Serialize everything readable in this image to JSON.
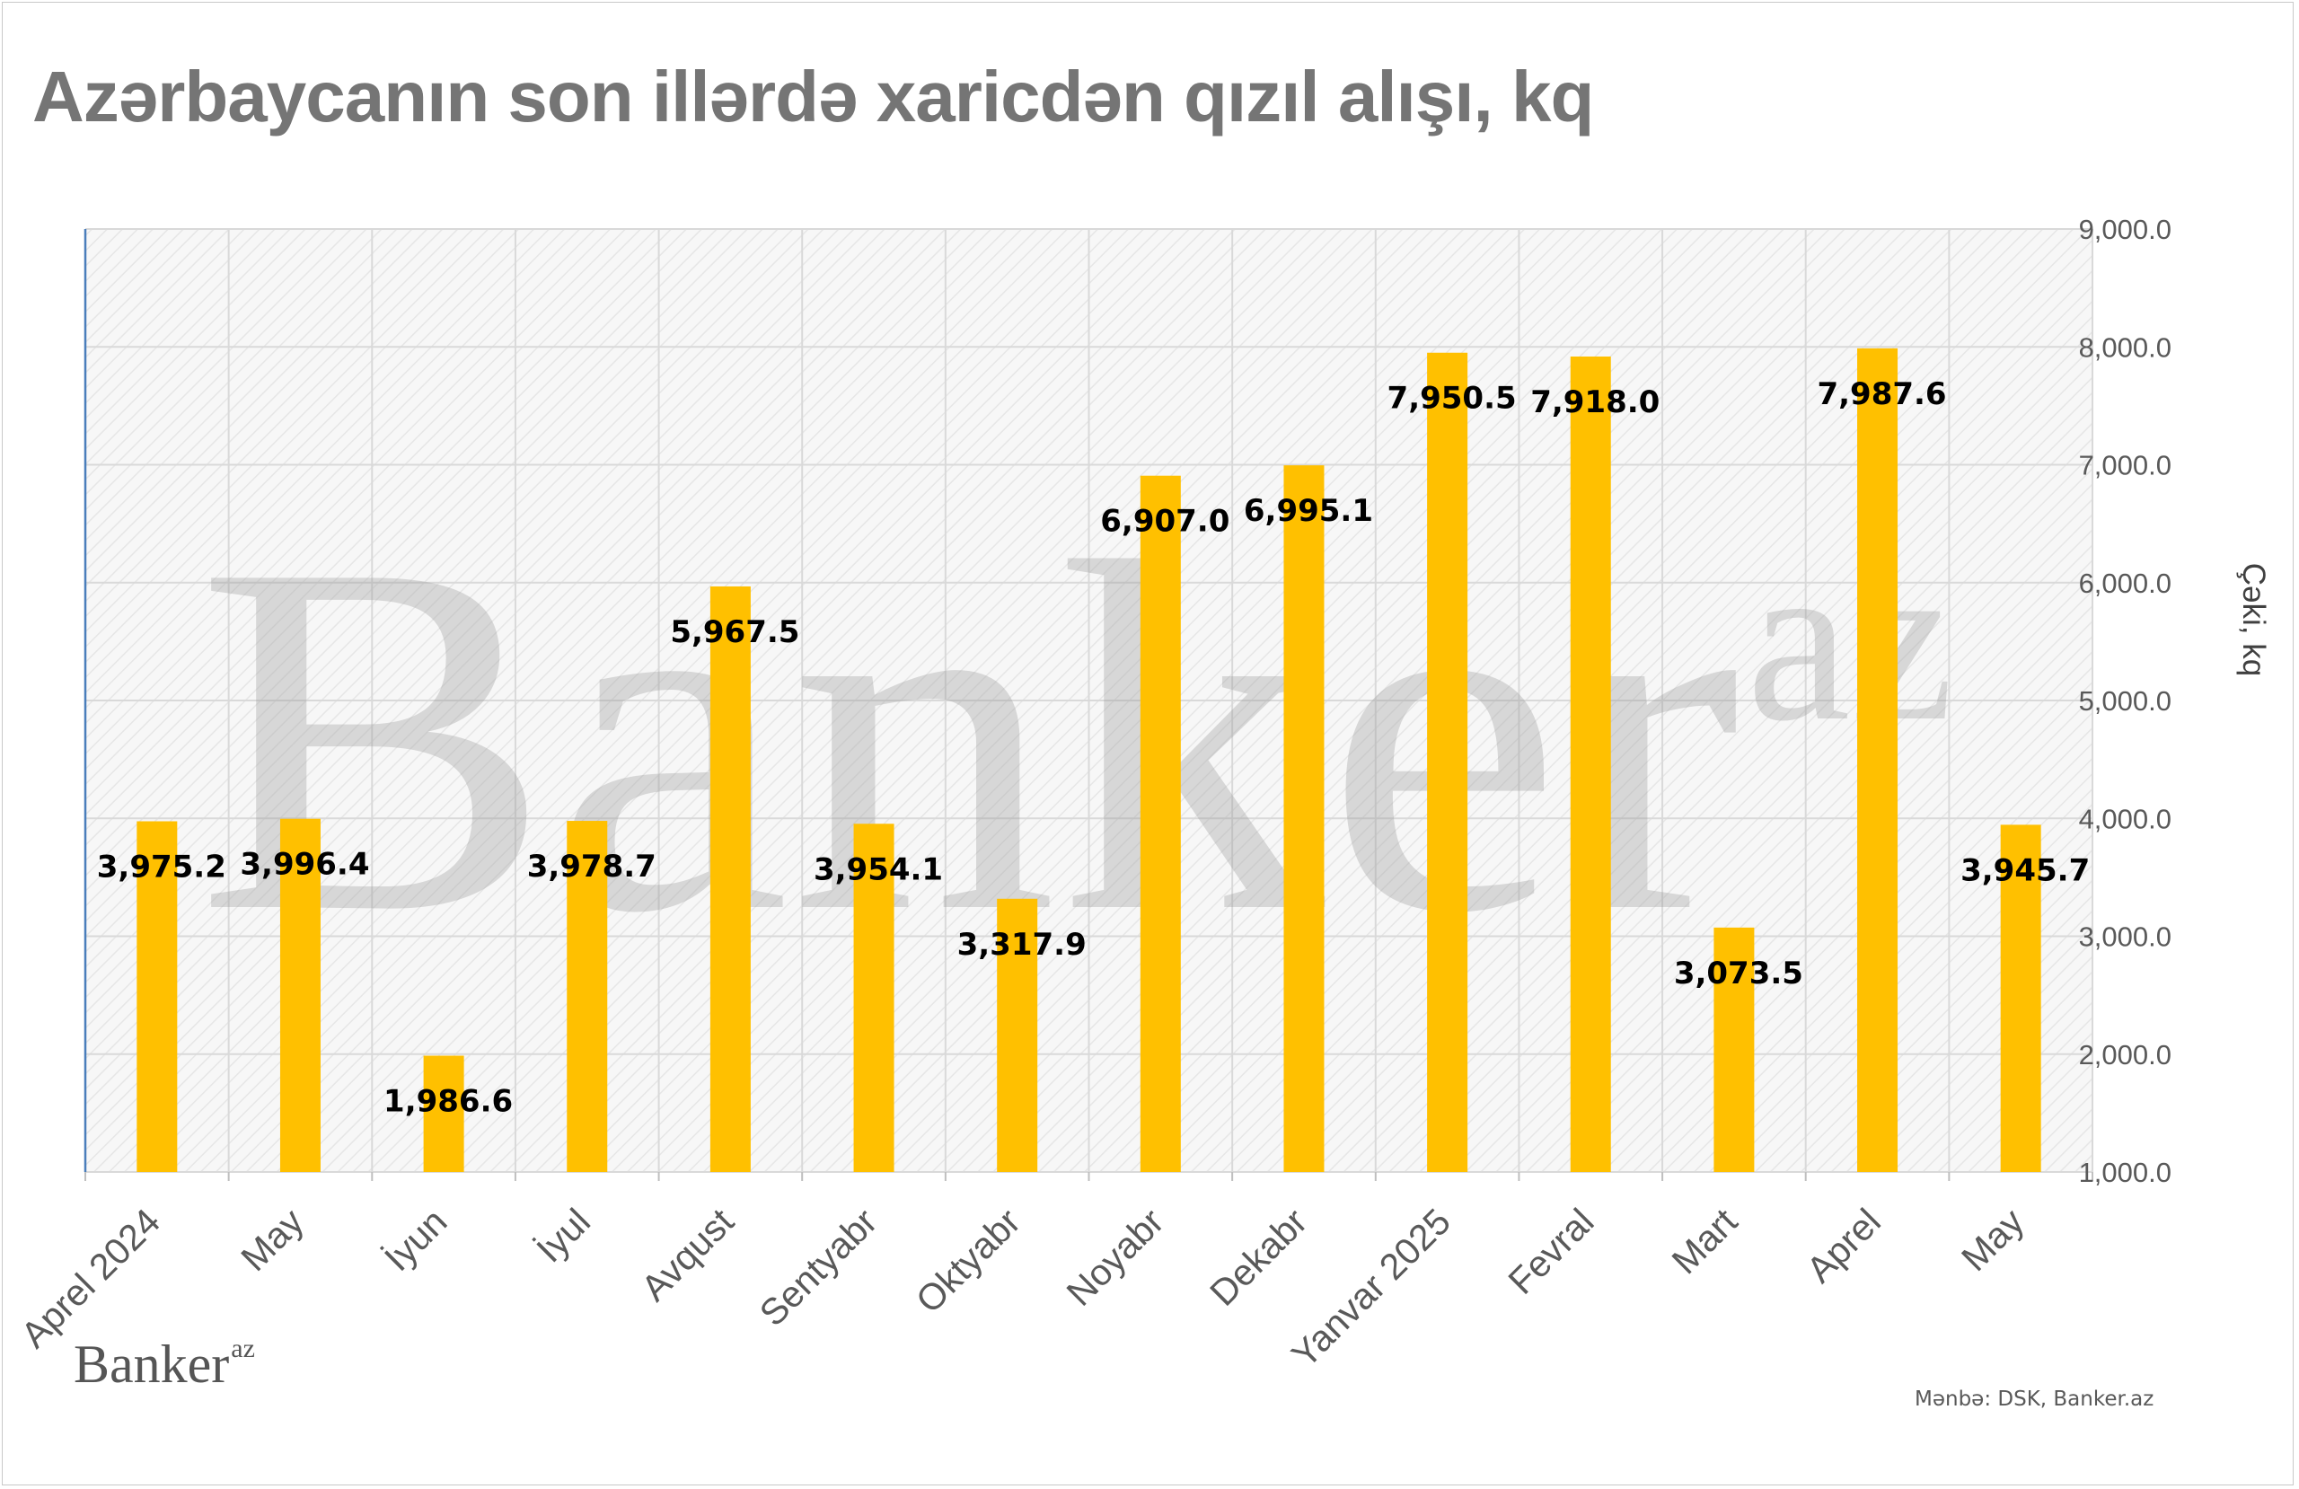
{
  "title": "Azərbaycanın son illərdə xaricdən qızıl alışı, kq",
  "source": "Mənbə: DSK, Banker.az",
  "brand": {
    "main": "Banker",
    "sup": "az"
  },
  "watermark": {
    "main": "Banker",
    "sup": "az"
  },
  "colors": {
    "bar": "#FFC000",
    "grid": "#d9d9d9",
    "axis": "#4a7ebb"
  },
  "chart_data": {
    "type": "bar",
    "title": "Azərbaycanın son illərdə xaricdən qızıl alışı, kq",
    "categories": [
      "Aprel  2024",
      "May",
      "İyun",
      "İyul",
      "Avqust",
      "Sentyabr",
      "Oktyabr",
      "Noyabr",
      "Dekabr",
      "Yanvar 2025",
      "Fevral",
      "Mart",
      "Aprel",
      "May"
    ],
    "values": [
      3975.2,
      3996.4,
      1986.6,
      3978.7,
      5967.5,
      3954.1,
      3317.9,
      6907.0,
      6995.1,
      7950.5,
      7918.0,
      3073.5,
      7987.6,
      3945.7
    ],
    "data_labels": [
      "3,975.2",
      "3,996.4",
      "1,986.6",
      "3,978.7",
      "5,967.5",
      "3,954.1",
      "3,317.9",
      "6,907.0",
      "6,995.1",
      "7,950.5",
      "7,918.0",
      "3,073.5",
      "7,987.6",
      "3,945.7"
    ],
    "y_ticks": [
      "1,000.0",
      "2,000.0",
      "3,000.0",
      "4,000.0",
      "5,000.0",
      "6,000.0",
      "7,000.0",
      "8,000.0",
      "9,000.0"
    ],
    "ylim": [
      1000,
      9000
    ],
    "ylabel": "Çəki, kq",
    "xlabel": "",
    "y_axis_side": "right",
    "grid": true
  }
}
